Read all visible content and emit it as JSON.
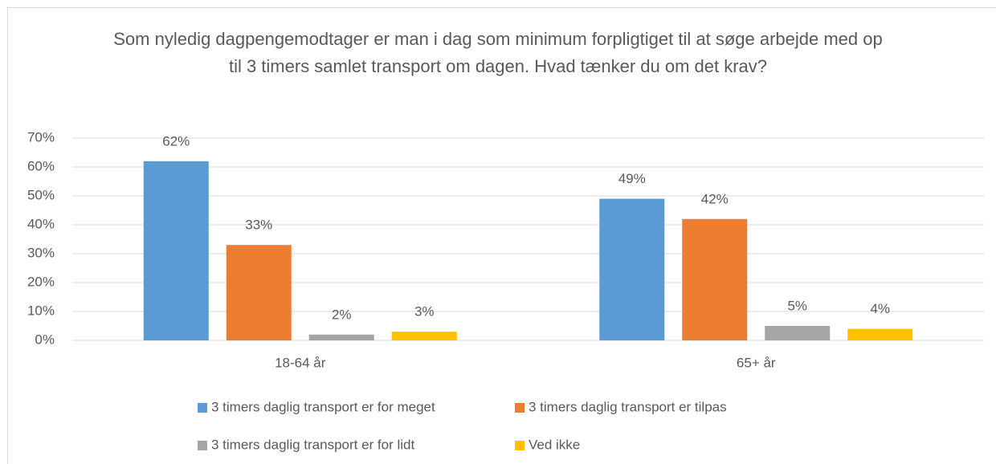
{
  "chart_data": {
    "type": "bar",
    "title": "Som nyledig dagpengemodtager er man i dag som minimum forpligtiget til at søge arbejde med op til 3 timers samlet transport om dagen. Hvad tænker du om det krav?",
    "categories": [
      "18-64 år",
      "65+ år"
    ],
    "series": [
      {
        "name": "3 timers daglig transport er for meget",
        "color": "#5b9bd5",
        "values": [
          62,
          49
        ],
        "value_labels": [
          "62%",
          "49%"
        ]
      },
      {
        "name": "3 timers daglig transport er tilpas",
        "color": "#ed7d31",
        "values": [
          33,
          42
        ],
        "value_labels": [
          "33%",
          "42%"
        ]
      },
      {
        "name": "3 timers daglig transport er for lidt",
        "color": "#a5a5a5",
        "values": [
          2,
          5
        ],
        "value_labels": [
          "2%",
          "5%"
        ]
      },
      {
        "name": "Ved ikke",
        "color": "#ffc000",
        "values": [
          3,
          4
        ],
        "value_labels": [
          "3%",
          "4%"
        ]
      }
    ],
    "ylim": [
      0,
      70
    ],
    "yticks": [
      {
        "value": 0,
        "label": "0%"
      },
      {
        "value": 10,
        "label": "10%"
      },
      {
        "value": 20,
        "label": "20%"
      },
      {
        "value": 30,
        "label": "30%"
      },
      {
        "value": 40,
        "label": "40%"
      },
      {
        "value": 50,
        "label": "50%"
      },
      {
        "value": 60,
        "label": "60%"
      },
      {
        "value": 70,
        "label": "70%"
      }
    ],
    "grid": true,
    "legend": "bottom"
  }
}
